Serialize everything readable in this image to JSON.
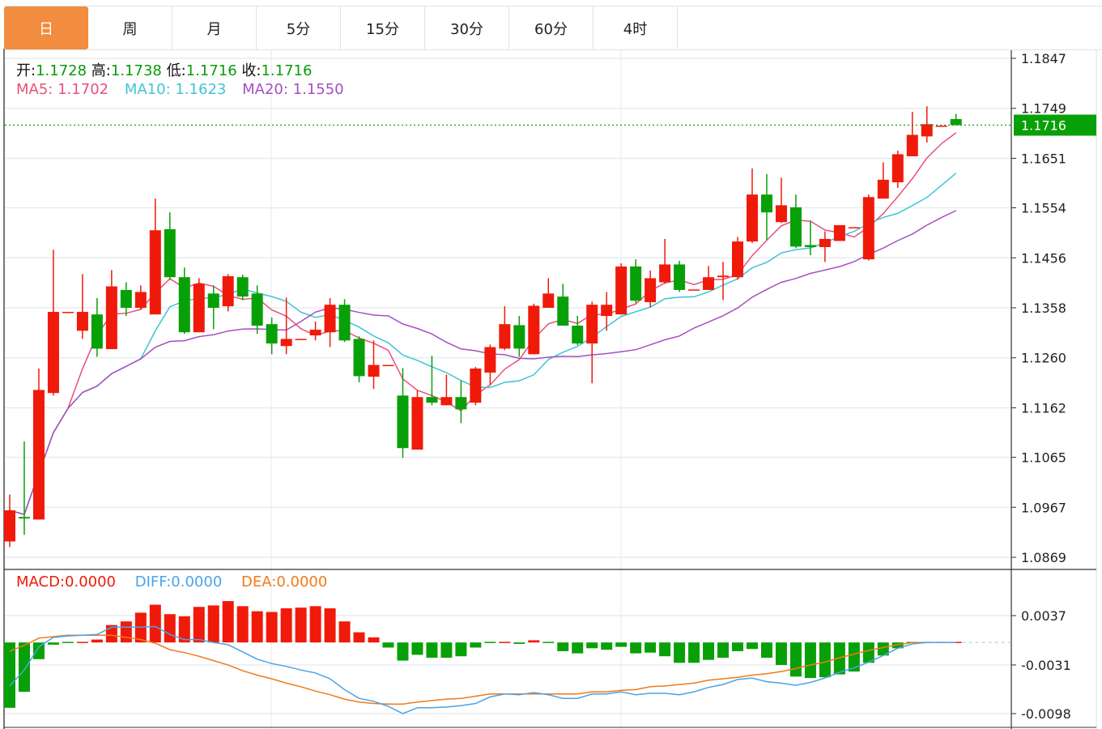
{
  "tabs": [
    {
      "label": "日",
      "active": true
    },
    {
      "label": "周",
      "active": false
    },
    {
      "label": "月",
      "active": false
    },
    {
      "label": "5分",
      "active": false
    },
    {
      "label": "15分",
      "active": false
    },
    {
      "label": "30分",
      "active": false
    },
    {
      "label": "60分",
      "active": false
    },
    {
      "label": "4时",
      "active": false
    }
  ],
  "ohlc": {
    "open_label": "开:",
    "open": "1.1728",
    "high_label": "高:",
    "high": "1.1738",
    "low_label": "低:",
    "low": "1.1716",
    "close_label": "收:",
    "close": "1.1716"
  },
  "ma": {
    "ma5_label": "MA5:",
    "ma5": "1.1702",
    "ma10_label": "MA10:",
    "ma10": "1.1623",
    "ma20_label": "MA20:",
    "ma20": "1.1550"
  },
  "macd_info": {
    "macd_label": "MACD:",
    "macd": "0.0000",
    "diff_label": "DIFF:",
    "diff": "0.0000",
    "dea_label": "DEA:",
    "dea": "0.0000"
  },
  "colors": {
    "up": "#f01a0a",
    "down": "#08a008",
    "tab_active": "#f28c3e",
    "ma5": "#e8507a",
    "ma10": "#3ec4d6",
    "ma20": "#a64fc0",
    "diff": "#4aa3e8",
    "dea": "#f07a1a",
    "last_price": "#08a008"
  },
  "chart_data": [
    {
      "type": "candlestick",
      "price_ticks": [
        "1.1847",
        "1.1749",
        "1.1651",
        "1.1554",
        "1.1456",
        "1.1358",
        "1.1260",
        "1.1162",
        "1.1065",
        "1.0967",
        "1.0869"
      ],
      "ylim": [
        1.0869,
        1.1847
      ],
      "last_price": "1.1716",
      "grid": true,
      "candles_ohlc": [
        [
          1.09,
          1.0992,
          1.0889,
          1.0961
        ],
        [
          1.0948,
          1.1096,
          1.0913,
          1.0945
        ],
        [
          1.0943,
          1.1239,
          1.0943,
          1.1197
        ],
        [
          1.1191,
          1.1472,
          1.1186,
          1.135
        ],
        [
          1.135,
          1.135,
          1.135,
          1.135
        ],
        [
          1.1313,
          1.1424,
          1.1297,
          1.135
        ],
        [
          1.1345,
          1.1377,
          1.1262,
          1.1278
        ],
        [
          1.1277,
          1.1432,
          1.1277,
          1.14
        ],
        [
          1.1393,
          1.1408,
          1.1342,
          1.1358
        ],
        [
          1.1358,
          1.1402,
          1.1354,
          1.1389
        ],
        [
          1.1345,
          1.1572,
          1.1345,
          1.151
        ],
        [
          1.1512,
          1.1545,
          1.1413,
          1.1418
        ],
        [
          1.1418,
          1.1437,
          1.1307,
          1.131
        ],
        [
          1.131,
          1.1416,
          1.131,
          1.1405
        ],
        [
          1.1386,
          1.1402,
          1.1316,
          1.1358
        ],
        [
          1.1361,
          1.1424,
          1.1351,
          1.142
        ],
        [
          1.1418,
          1.1423,
          1.1373,
          1.138
        ],
        [
          1.1386,
          1.1402,
          1.1307,
          1.1323
        ],
        [
          1.1326,
          1.1339,
          1.1267,
          1.1288
        ],
        [
          1.1283,
          1.1378,
          1.1267,
          1.1297
        ],
        [
          1.1297,
          1.1297,
          1.1297,
          1.1297
        ],
        [
          1.1304,
          1.1331,
          1.1294,
          1.1315
        ],
        [
          1.131,
          1.1377,
          1.1281,
          1.1364
        ],
        [
          1.1364,
          1.1375,
          1.1291,
          1.1294
        ],
        [
          1.1297,
          1.1302,
          1.1212,
          1.1224
        ],
        [
          1.1223,
          1.1294,
          1.1199,
          1.1246
        ],
        [
          1.1246,
          1.1246,
          1.1246,
          1.1246
        ],
        [
          1.1186,
          1.124,
          1.1064,
          1.1083
        ],
        [
          1.108,
          1.1196,
          1.108,
          1.1183
        ],
        [
          1.1183,
          1.1264,
          1.1167,
          1.1172
        ],
        [
          1.1167,
          1.1227,
          1.1167,
          1.1183
        ],
        [
          1.1183,
          1.1215,
          1.1132,
          1.1159
        ],
        [
          1.1172,
          1.1242,
          1.1167,
          1.1239
        ],
        [
          1.1231,
          1.1286,
          1.1207,
          1.1281
        ],
        [
          1.1278,
          1.1361,
          1.1275,
          1.1326
        ],
        [
          1.1324,
          1.1342,
          1.1262,
          1.1278
        ],
        [
          1.1267,
          1.1366,
          1.1267,
          1.1362
        ],
        [
          1.1358,
          1.1416,
          1.1358,
          1.1386
        ],
        [
          1.138,
          1.1405,
          1.1323,
          1.1323
        ],
        [
          1.1323,
          1.1342,
          1.1285,
          1.1288
        ],
        [
          1.1288,
          1.137,
          1.121,
          1.1364
        ],
        [
          1.1342,
          1.1389,
          1.1313,
          1.1364
        ],
        [
          1.1345,
          1.1445,
          1.1345,
          1.1439
        ],
        [
          1.1439,
          1.1453,
          1.1367,
          1.1372
        ],
        [
          1.1369,
          1.1431,
          1.1359,
          1.1416
        ],
        [
          1.1408,
          1.1493,
          1.1405,
          1.1443
        ],
        [
          1.1443,
          1.145,
          1.1389,
          1.1393
        ],
        [
          1.1394,
          1.1394,
          1.1394,
          1.1394
        ],
        [
          1.1393,
          1.144,
          1.1393,
          1.1418
        ],
        [
          1.1418,
          1.1448,
          1.1373,
          1.1421
        ],
        [
          1.1418,
          1.1497,
          1.1413,
          1.1488
        ],
        [
          1.1488,
          1.1631,
          1.1485,
          1.158
        ],
        [
          1.158,
          1.162,
          1.1491,
          1.1545
        ],
        [
          1.1526,
          1.1613,
          1.1524,
          1.1559
        ],
        [
          1.1555,
          1.158,
          1.1475,
          1.1478
        ],
        [
          1.1481,
          1.1529,
          1.1461,
          1.1477
        ],
        [
          1.1477,
          1.1508,
          1.1448,
          1.1493
        ],
        [
          1.1489,
          1.152,
          1.1489,
          1.152
        ],
        [
          1.1516,
          1.1516,
          1.1516,
          1.1516
        ],
        [
          1.1453,
          1.158,
          1.1451,
          1.1575
        ],
        [
          1.1572,
          1.1643,
          1.1572,
          1.1609
        ],
        [
          1.1604,
          1.1666,
          1.1593,
          1.1659
        ],
        [
          1.1655,
          1.1742,
          1.1655,
          1.1697
        ],
        [
          1.1694,
          1.1753,
          1.1682,
          1.1718
        ],
        [
          1.1715,
          1.1715,
          1.1715,
          1.1715
        ],
        [
          1.1728,
          1.1738,
          1.1716,
          1.1716
        ]
      ],
      "moving_averages": [
        {
          "name": "MA5",
          "period": 5
        },
        {
          "name": "MA10",
          "period": 10
        },
        {
          "name": "MA20",
          "period": 20
        }
      ]
    },
    {
      "type": "bar+line",
      "ticks": [
        "0.0037",
        "-0.0031",
        "-0.0098"
      ],
      "ylim": [
        -0.0098,
        0.0037
      ],
      "macd": [
        -0.009,
        -0.0068,
        -0.0023,
        -0.0003,
        -0.0001,
        0.0001,
        0.0004,
        0.0024,
        0.0029,
        0.0041,
        0.0052,
        0.0039,
        0.0036,
        0.0049,
        0.0051,
        0.0057,
        0.005,
        0.0043,
        0.0042,
        0.0047,
        0.0048,
        0.005,
        0.0047,
        0.0029,
        0.0014,
        0.0007,
        -0.0007,
        -0.0025,
        -0.0017,
        -0.0021,
        -0.0021,
        -0.0019,
        -0.0007,
        -0.0001,
        0.0001,
        -0.0002,
        0.0003,
        -0.0001,
        -0.0012,
        -0.0015,
        -0.0008,
        -0.001,
        -0.0006,
        -0.0015,
        -0.0014,
        -0.0019,
        -0.0028,
        -0.0028,
        -0.0024,
        -0.0021,
        -0.0012,
        -0.0009,
        -0.0021,
        -0.0031,
        -0.0047,
        -0.0049,
        -0.0048,
        -0.0044,
        -0.004,
        -0.0028,
        -0.0018,
        -0.0008,
        -0.0001,
        0,
        0,
        0
      ],
      "diff": [
        -0.006,
        -0.0038,
        -0.0006,
        0.0007,
        0.0009,
        0.001,
        0.0011,
        0.0021,
        0.0021,
        0.0021,
        0.0022,
        0.0011,
        0.0004,
        0.0004,
        0.0,
        -0.0003,
        -0.0013,
        -0.0023,
        -0.0029,
        -0.0033,
        -0.0038,
        -0.0042,
        -0.005,
        -0.0065,
        -0.0077,
        -0.0081,
        -0.0088,
        -0.0098,
        -0.009,
        -0.009,
        -0.0089,
        -0.0087,
        -0.0084,
        -0.0075,
        -0.0071,
        -0.0072,
        -0.0069,
        -0.0072,
        -0.0077,
        -0.0077,
        -0.0071,
        -0.0071,
        -0.0068,
        -0.0072,
        -0.007,
        -0.007,
        -0.0072,
        -0.0068,
        -0.0062,
        -0.0058,
        -0.0051,
        -0.0049,
        -0.0054,
        -0.0056,
        -0.0059,
        -0.0055,
        -0.0049,
        -0.0041,
        -0.0035,
        -0.0027,
        -0.0018,
        -0.0008,
        -0.0002,
        0,
        0,
        0
      ],
      "dea": [
        -0.0012,
        -0.0004,
        0.0006,
        0.0008,
        0.001,
        0.001,
        0.001,
        0.001,
        0.0007,
        0.0004,
        -0.0001,
        -0.001,
        -0.0014,
        -0.0019,
        -0.0025,
        -0.0031,
        -0.0039,
        -0.0045,
        -0.005,
        -0.0056,
        -0.0061,
        -0.0067,
        -0.0072,
        -0.0078,
        -0.0082,
        -0.0084,
        -0.0085,
        -0.0085,
        -0.0082,
        -0.008,
        -0.0078,
        -0.0077,
        -0.0074,
        -0.0071,
        -0.0071,
        -0.0071,
        -0.0071,
        -0.0071,
        -0.0071,
        -0.0071,
        -0.0068,
        -0.0068,
        -0.0066,
        -0.0065,
        -0.0061,
        -0.006,
        -0.0058,
        -0.0056,
        -0.0052,
        -0.005,
        -0.0048,
        -0.0045,
        -0.0043,
        -0.004,
        -0.0036,
        -0.0031,
        -0.0027,
        -0.0021,
        -0.0016,
        -0.0011,
        -0.0007,
        -0.0003,
        0,
        0,
        0,
        0
      ]
    }
  ]
}
